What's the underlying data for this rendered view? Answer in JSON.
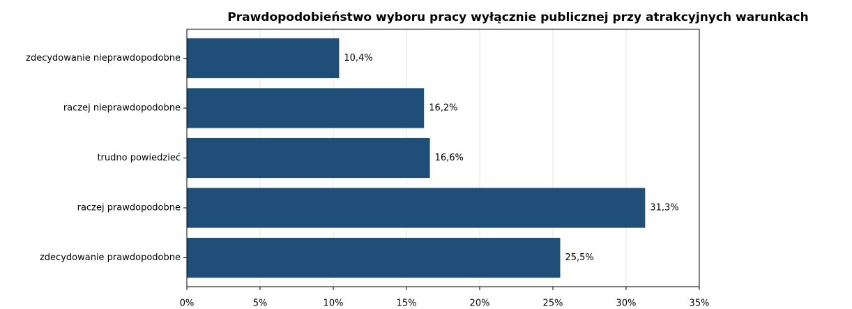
{
  "chart_data": {
    "type": "barh",
    "title": "Prawdopodobieństwo wyboru pracy wyłącznie publicznej przy atrakcyjnych warunkach",
    "categories": [
      "zdecydowanie nieprawdopodobne",
      "raczej nieprawdopodobne",
      "trudno powiedzieć",
      "raczej prawdopodobne",
      "zdecydowanie prawdopodobne"
    ],
    "values": [
      10.4,
      16.2,
      16.6,
      31.3,
      25.5
    ],
    "value_labels": [
      "10,4%",
      "16,2%",
      "16,6%",
      "31,3%",
      "25,5%"
    ],
    "color": "#1f4e79",
    "xlim": [
      0,
      35
    ],
    "xticks": [
      {
        "value": 0,
        "label": "0%"
      },
      {
        "value": 5,
        "label": "5%"
      },
      {
        "value": 10,
        "label": "10%"
      },
      {
        "value": 15,
        "label": "15%"
      },
      {
        "value": 20,
        "label": "20%"
      },
      {
        "value": 25,
        "label": "25%"
      },
      {
        "value": 30,
        "label": "30%"
      },
      {
        "value": 35,
        "label": "35%"
      }
    ],
    "grid": true
  }
}
